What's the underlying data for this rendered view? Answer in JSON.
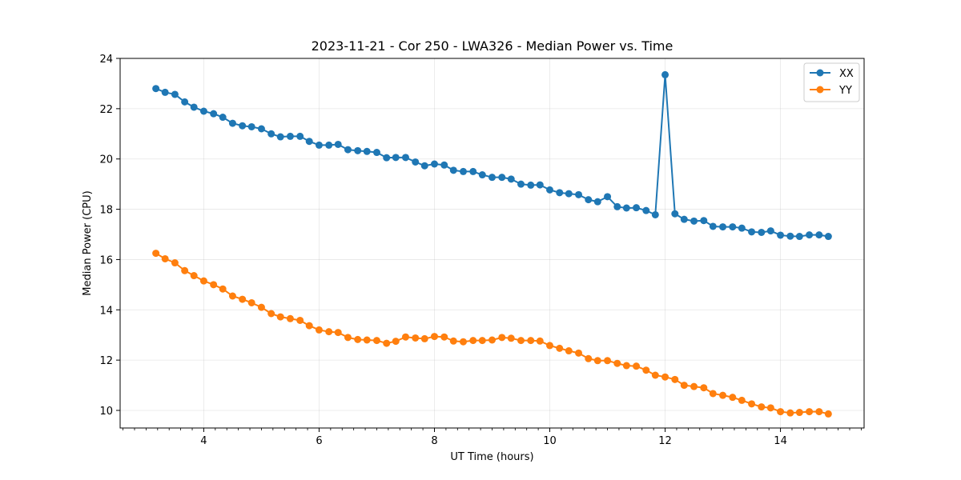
{
  "chart_data": {
    "type": "line",
    "title": "2023-11-21 - Cor 250 - LWA326 - Median Power vs. Time",
    "xlabel": "UT Time (hours)",
    "ylabel": "Median Power (CPU)",
    "xlim": [
      2.55,
      15.45
    ],
    "ylim": [
      9.3,
      24.0
    ],
    "x_ticks": [
      4,
      6,
      8,
      10,
      12,
      14
    ],
    "x_minor_step": 0.2,
    "y_ticks": [
      10,
      12,
      14,
      16,
      18,
      20,
      22,
      24
    ],
    "grid": true,
    "legend_position": "top-right",
    "x": [
      3.17,
      3.33,
      3.5,
      3.67,
      3.83,
      4.0,
      4.17,
      4.33,
      4.5,
      4.67,
      4.83,
      5.0,
      5.17,
      5.33,
      5.5,
      5.67,
      5.83,
      6.0,
      6.17,
      6.33,
      6.5,
      6.67,
      6.83,
      7.0,
      7.17,
      7.33,
      7.5,
      7.67,
      7.83,
      8.0,
      8.17,
      8.33,
      8.5,
      8.67,
      8.83,
      9.0,
      9.17,
      9.33,
      9.5,
      9.67,
      9.83,
      10.0,
      10.17,
      10.33,
      10.5,
      10.67,
      10.83,
      11.0,
      11.17,
      11.33,
      11.5,
      11.67,
      11.83,
      12.0,
      12.17,
      12.33,
      12.5,
      12.67,
      12.83,
      13.0,
      13.17,
      13.33,
      13.5,
      13.67,
      13.83,
      14.0,
      14.17,
      14.33,
      14.5,
      14.67,
      14.83
    ],
    "series": [
      {
        "name": "XX",
        "color": "#1f77b4",
        "values": [
          22.8,
          22.65,
          22.57,
          22.27,
          22.06,
          21.9,
          21.8,
          21.66,
          21.42,
          21.32,
          21.28,
          21.2,
          21.0,
          20.88,
          20.9,
          20.9,
          20.7,
          20.55,
          20.55,
          20.58,
          20.37,
          20.33,
          20.3,
          20.26,
          20.05,
          20.06,
          20.06,
          19.88,
          19.73,
          19.8,
          19.76,
          19.55,
          19.5,
          19.5,
          19.37,
          19.27,
          19.27,
          19.2,
          19.0,
          18.96,
          18.97,
          18.77,
          18.66,
          18.62,
          18.58,
          18.38,
          18.3,
          18.5,
          18.1,
          18.05,
          18.06,
          17.95,
          17.78,
          23.35,
          17.82,
          17.6,
          17.53,
          17.55,
          17.32,
          17.3,
          17.3,
          17.25,
          17.1,
          17.08,
          17.14,
          16.97,
          16.93,
          16.92,
          16.98,
          16.98,
          16.92
        ]
      },
      {
        "name": "YY",
        "color": "#ff7f0e",
        "values": [
          16.25,
          16.03,
          15.87,
          15.56,
          15.36,
          15.15,
          15.0,
          14.83,
          14.55,
          14.42,
          14.28,
          14.1,
          13.85,
          13.72,
          13.65,
          13.58,
          13.37,
          13.2,
          13.13,
          13.1,
          12.9,
          12.82,
          12.8,
          12.78,
          12.67,
          12.75,
          12.92,
          12.88,
          12.85,
          12.94,
          12.92,
          12.76,
          12.73,
          12.78,
          12.78,
          12.8,
          12.9,
          12.87,
          12.78,
          12.78,
          12.76,
          12.58,
          12.47,
          12.37,
          12.28,
          12.06,
          11.98,
          11.98,
          11.87,
          11.78,
          11.76,
          11.6,
          11.4,
          11.33,
          11.23,
          11.0,
          10.95,
          10.9,
          10.67,
          10.6,
          10.52,
          10.4,
          10.26,
          10.14,
          10.1,
          9.95,
          9.9,
          9.92,
          9.95,
          9.95,
          9.86
        ]
      }
    ]
  }
}
